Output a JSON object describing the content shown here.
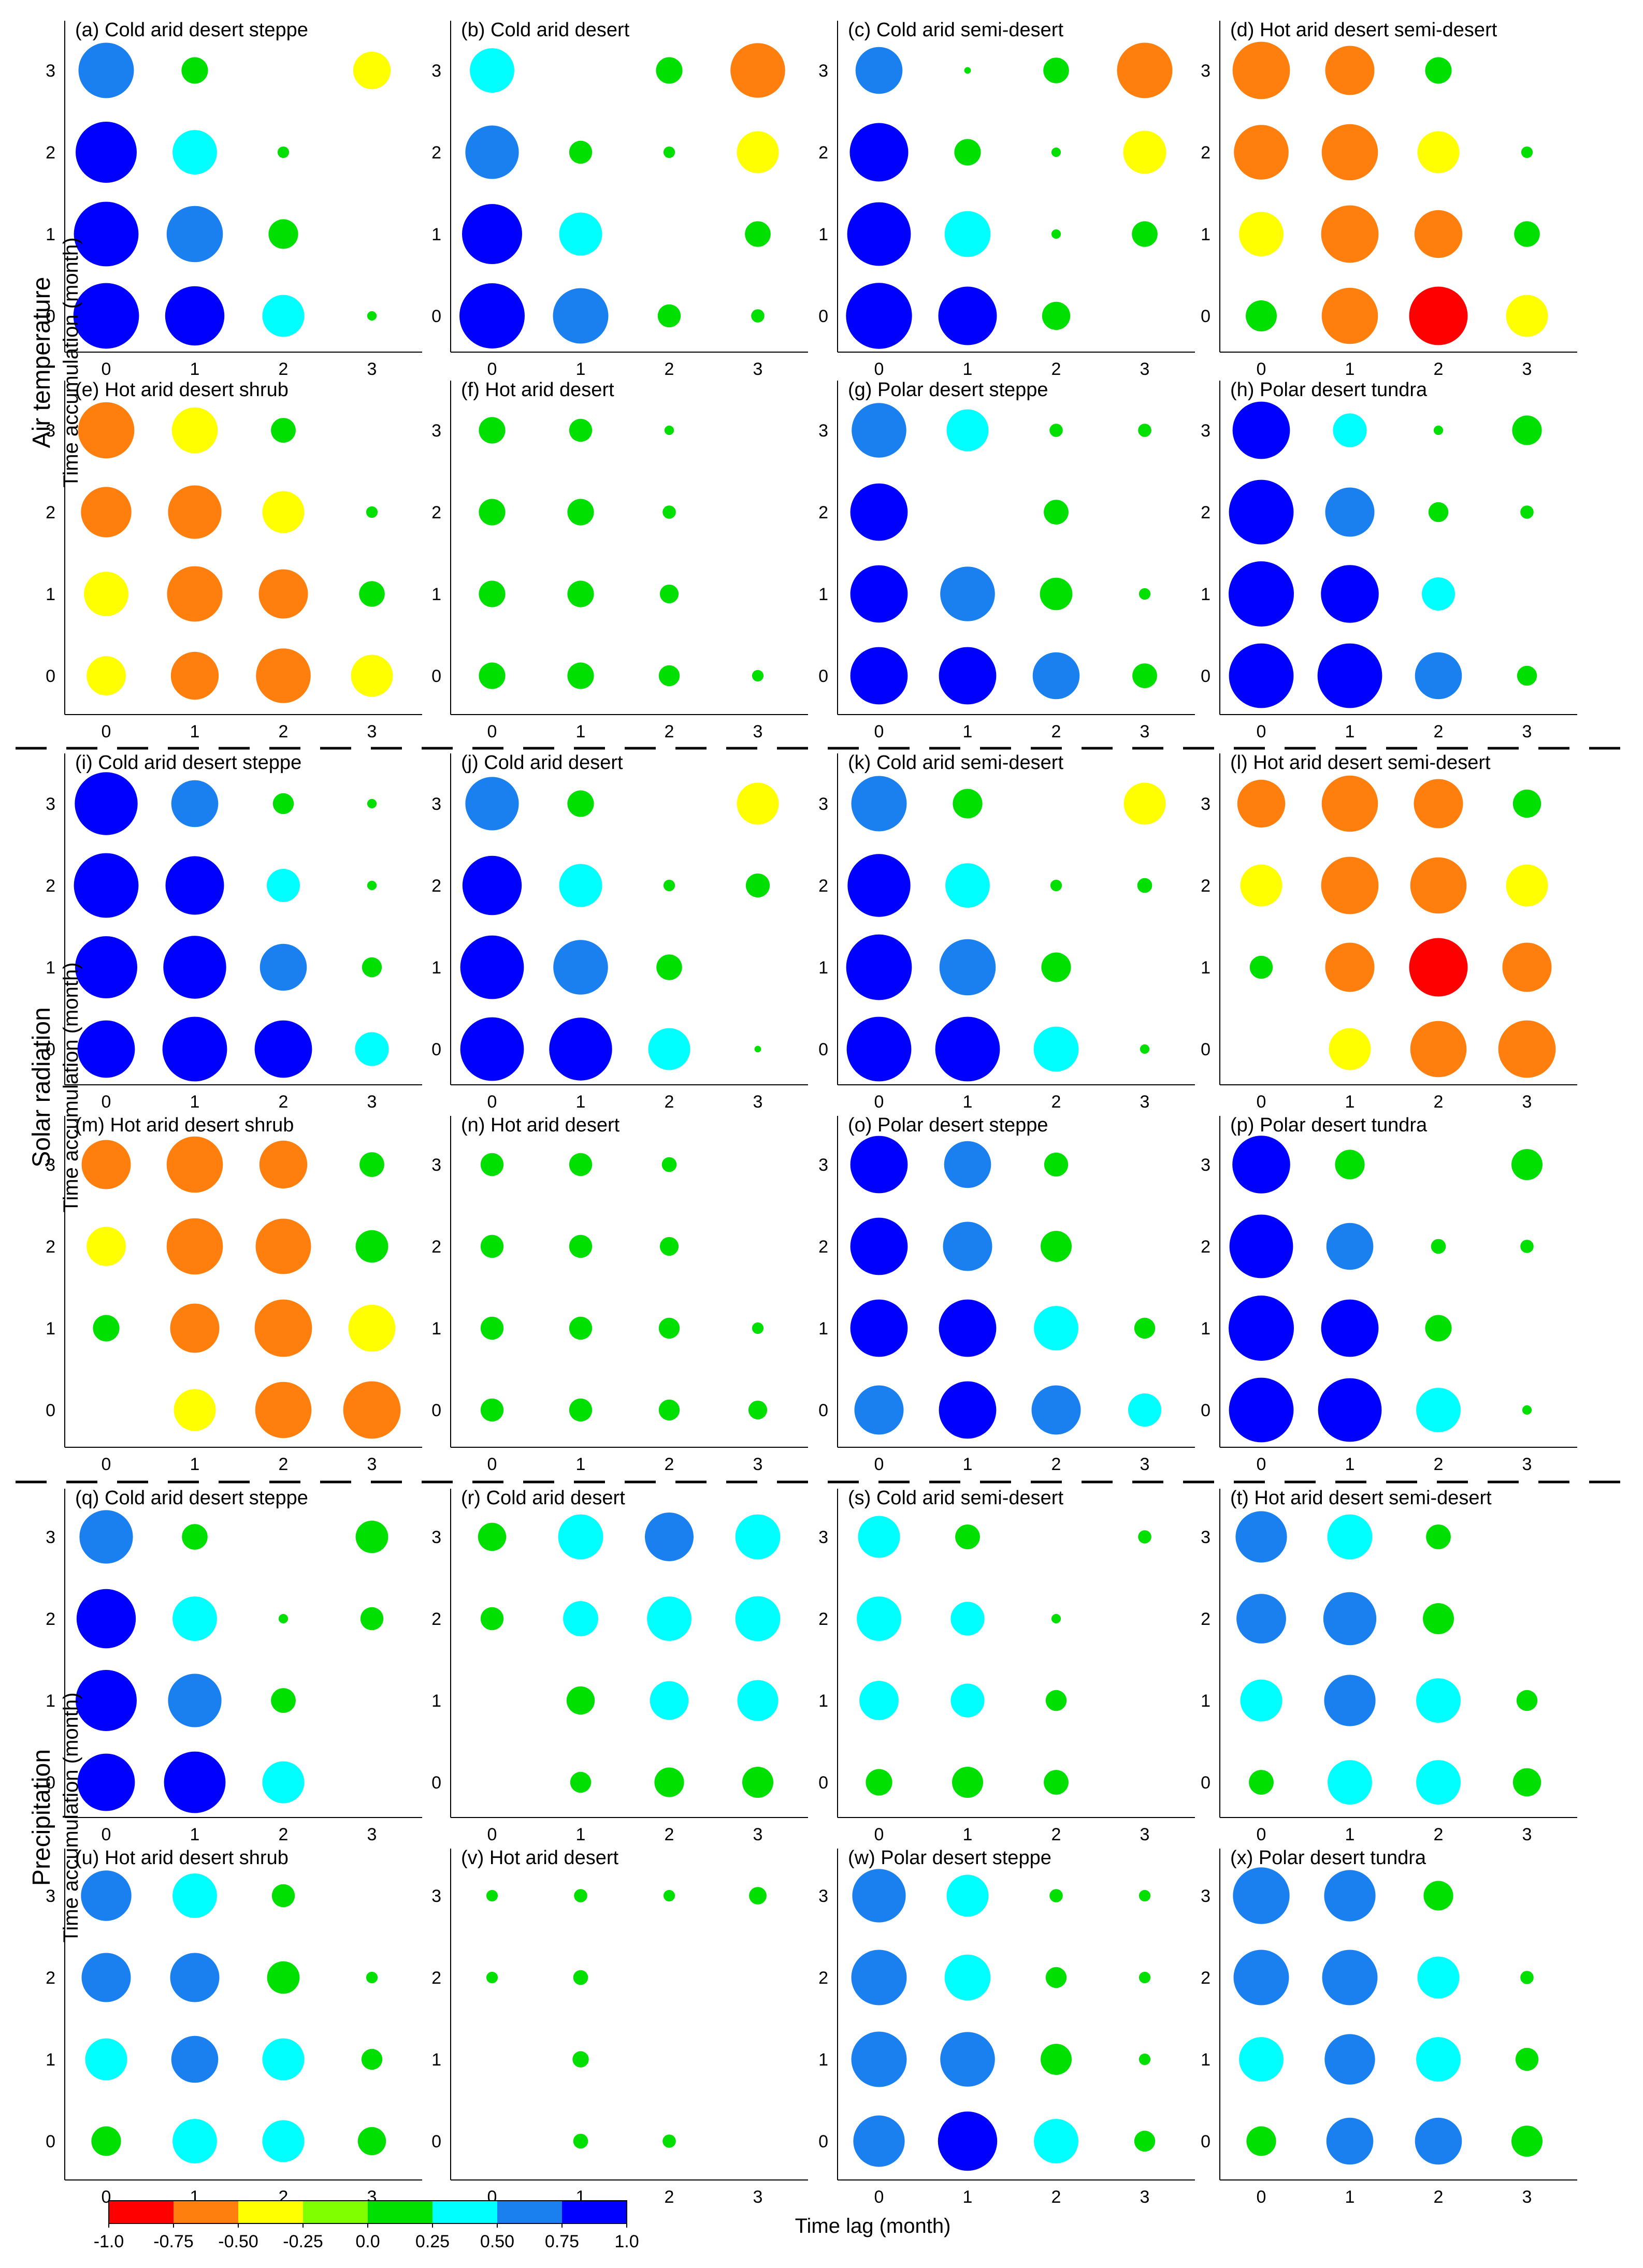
{
  "chart_data": {
    "type": "scatter",
    "encoding": "bubble: size = |correlation|, color = correlation",
    "x_label": "Time lag (month)",
    "y_label": "Time accumulation (month)",
    "x_ticks": [
      "0",
      "1",
      "2",
      "3"
    ],
    "y_ticks": [
      "0",
      "1",
      "2",
      "3"
    ],
    "groups": [
      "Air temperature",
      "Solar radiation",
      "Precipitation"
    ],
    "colorbar": {
      "ticks": [
        "-1.0",
        "-0.75",
        "-0.50",
        "-0.25",
        "0.0",
        "0.25",
        "0.50",
        "0.75",
        "1.0"
      ],
      "colors": [
        "#ff0000",
        "#ff7f0e",
        "#ffff00",
        "#7fff00",
        "#00e000",
        "#00ffff",
        "#1a80f0",
        "#0000ff"
      ]
    },
    "panels": [
      {
        "title": "(a) Cold arid desert steppe",
        "values": [
          [
            0.98,
            0.8,
            0.4,
            0.02
          ],
          [
            0.95,
            0.72,
            0.2,
            0
          ],
          [
            0.85,
            0.45,
            0.03,
            0
          ],
          [
            0.7,
            0.16,
            0,
            -0.32
          ]
        ]
      },
      {
        "title": "(b) Cold arid desert",
        "values": [
          [
            0.97,
            0.7,
            0.12,
            0.04
          ],
          [
            0.82,
            0.42,
            0,
            0.15
          ],
          [
            0.65,
            0.12,
            0.03,
            -0.4
          ],
          [
            0.45,
            0,
            0.16,
            -0.68
          ]
        ]
      },
      {
        "title": "(c) Cold arid semi-desert",
        "values": [
          [
            0.99,
            0.78,
            0.18,
            0
          ],
          [
            0.92,
            0.48,
            0.02,
            0.15
          ],
          [
            0.78,
            0.16,
            0.02,
            -0.42
          ],
          [
            0.5,
            0.01,
            0.15,
            -0.7
          ]
        ]
      },
      {
        "title": "(d) Hot arid desert semi-desert",
        "values": [
          [
            0.22,
            -0.72,
            -0.78,
            -0.4
          ],
          [
            -0.45,
            -0.75,
            -0.52,
            0.15
          ],
          [
            -0.68,
            -0.72,
            -0.4,
            0.03
          ],
          [
            -0.75,
            -0.55,
            0.16,
            0
          ]
        ]
      },
      {
        "title": "(e) Hot arid desert shrub",
        "values": [
          [
            -0.35,
            -0.52,
            -0.68,
            -0.4
          ],
          [
            -0.45,
            -0.7,
            -0.55,
            0.15
          ],
          [
            -0.58,
            -0.65,
            -0.4,
            0.03
          ],
          [
            -0.72,
            -0.48,
            0.14,
            0
          ]
        ]
      },
      {
        "title": "(f) Hot arid desert",
        "values": [
          [
            0.16,
            0.16,
            0.1,
            0.03
          ],
          [
            0.16,
            0.16,
            0.08,
            0
          ],
          [
            0.16,
            0.16,
            0.04,
            0
          ],
          [
            0.16,
            0.12,
            0.02,
            0
          ]
        ]
      },
      {
        "title": "(g) Polar desert steppe",
        "values": [
          [
            0.75,
            0.75,
            0.5,
            0.14
          ],
          [
            0.75,
            0.68,
            0.24,
            0.03
          ],
          [
            0.75,
            0,
            0.14,
            0
          ],
          [
            0.68,
            0.4,
            0.04,
            0.04
          ]
        ]
      },
      {
        "title": "(h) Polar desert tundra",
        "values": [
          [
            0.95,
            0.95,
            0.5,
            0.09
          ],
          [
            0.97,
            0.76,
            0.25,
            0
          ],
          [
            0.95,
            0.55,
            0.09,
            0.04
          ],
          [
            0.75,
            0.26,
            0.02,
            0.2
          ]
        ]
      },
      {
        "title": "(i) Cold arid desert steppe",
        "values": [
          [
            0.75,
            0.95,
            0.75,
            0.26
          ],
          [
            0.88,
            0.9,
            0.5,
            0.09
          ],
          [
            0.95,
            0.78,
            0.25,
            0.02
          ],
          [
            0.9,
            0.5,
            0.1,
            0.02
          ]
        ]
      },
      {
        "title": "(j) Cold arid desert",
        "values": [
          [
            0.92,
            0.9,
            0.4,
            0.01
          ],
          [
            0.92,
            0.68,
            0.15,
            0
          ],
          [
            0.8,
            0.42,
            0.03,
            0.13
          ],
          [
            0.65,
            0.16,
            0,
            -0.4
          ]
        ]
      },
      {
        "title": "(k) Cold arid semi-desert",
        "values": [
          [
            0.95,
            0.95,
            0.46,
            0.02
          ],
          [
            0.98,
            0.72,
            0.2,
            0
          ],
          [
            0.9,
            0.45,
            0.03,
            0.05
          ],
          [
            0.7,
            0.2,
            0,
            -0.4
          ]
        ]
      },
      {
        "title": "(l) Hot arid desert semi-desert",
        "values": [
          [
            0,
            -0.4,
            -0.72,
            -0.75
          ],
          [
            0.12,
            -0.55,
            -0.78,
            -0.55
          ],
          [
            -0.4,
            -0.75,
            -0.72,
            -0.4
          ],
          [
            -0.52,
            -0.72,
            -0.55,
            0.18
          ]
        ]
      },
      {
        "title": "(m) Hot arid desert shrub",
        "values": [
          [
            0,
            -0.4,
            -0.72,
            -0.75
          ],
          [
            0.16,
            -0.55,
            -0.75,
            -0.5
          ],
          [
            -0.35,
            -0.72,
            -0.7,
            0.24
          ],
          [
            -0.55,
            -0.72,
            -0.52,
            0.14
          ]
        ]
      },
      {
        "title": "(n) Hot arid desert",
        "values": [
          [
            0.12,
            0.12,
            0.1,
            0.08
          ],
          [
            0.12,
            0.12,
            0.1,
            0.03
          ],
          [
            0.12,
            0.12,
            0.08,
            0
          ],
          [
            0.12,
            0.12,
            0.05,
            0
          ]
        ]
      },
      {
        "title": "(o) Polar desert steppe",
        "values": [
          [
            0.55,
            0.75,
            0.55,
            0.25
          ],
          [
            0.75,
            0.75,
            0.45,
            0.1
          ],
          [
            0.75,
            0.55,
            0.22,
            0
          ],
          [
            0.75,
            0.5,
            0.13,
            0
          ]
        ]
      },
      {
        "title": "(p) Polar desert tundra",
        "values": [
          [
            0.95,
            0.92,
            0.45,
            0.02
          ],
          [
            0.97,
            0.75,
            0.16,
            0
          ],
          [
            0.92,
            0.5,
            0.05,
            0.04
          ],
          [
            0.76,
            0.2,
            0,
            0.22
          ]
        ]
      },
      {
        "title": "(q) Cold arid desert steppe",
        "values": [
          [
            0.75,
            0.86,
            0.4,
            0
          ],
          [
            0.85,
            0.65,
            0.14,
            0
          ],
          [
            0.8,
            0.45,
            0.02,
            0.12
          ],
          [
            0.65,
            0.15,
            0,
            0.24
          ]
        ]
      },
      {
        "title": "(r) Cold arid desert",
        "values": [
          [
            0,
            0.1,
            0.2,
            0.22
          ],
          [
            0,
            0.18,
            0.34,
            0.38
          ],
          [
            0.12,
            0.28,
            0.45,
            0.46
          ],
          [
            0.18,
            0.46,
            0.54,
            0.46
          ]
        ]
      },
      {
        "title": "(s) Cold arid semi-desert",
        "values": [
          [
            0.16,
            0.22,
            0.14,
            0
          ],
          [
            0.35,
            0.26,
            0.1,
            0
          ],
          [
            0.45,
            0.26,
            0.02,
            0
          ],
          [
            0.4,
            0.14,
            0,
            0.04
          ]
        ]
      },
      {
        "title": "(t) Hot arid desert semi-desert",
        "values": [
          [
            0.14,
            0.45,
            0.45,
            0.18
          ],
          [
            0.4,
            0.6,
            0.45,
            0.1
          ],
          [
            0.56,
            0.64,
            0.22,
            0
          ],
          [
            0.6,
            0.46,
            0.14,
            0
          ]
        ]
      },
      {
        "title": "(u) Hot arid desert shrub",
        "values": [
          [
            0.2,
            0.45,
            0.4,
            0.18
          ],
          [
            0.4,
            0.5,
            0.4,
            0.1
          ],
          [
            0.55,
            0.55,
            0.24,
            0.03
          ],
          [
            0.58,
            0.45,
            0.12,
            0
          ]
        ]
      },
      {
        "title": "(v) Hot arid desert",
        "values": [
          [
            0,
            0.05,
            0.04,
            0
          ],
          [
            0,
            0.06,
            0,
            0
          ],
          [
            0.03,
            0.05,
            0,
            0
          ],
          [
            0.03,
            0.04,
            0.03,
            0.07
          ]
        ]
      },
      {
        "title": "(w) Polar desert steppe",
        "values": [
          [
            0.6,
            0.8,
            0.45,
            0.1
          ],
          [
            0.7,
            0.68,
            0.22,
            0.03
          ],
          [
            0.7,
            0.48,
            0.1,
            0.03
          ],
          [
            0.65,
            0.4,
            0.04,
            0.03
          ]
        ]
      },
      {
        "title": "(x) Polar desert tundra",
        "values": [
          [
            0.2,
            0.5,
            0.5,
            0.22
          ],
          [
            0.45,
            0.58,
            0.45,
            0.12
          ],
          [
            0.7,
            0.7,
            0.4,
            0.04
          ],
          [
            0.73,
            0.6,
            0.2,
            0
          ]
        ]
      }
    ]
  }
}
